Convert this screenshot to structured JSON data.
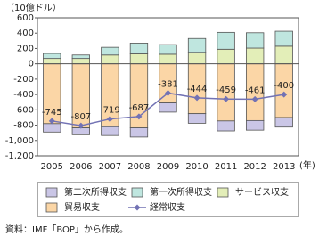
{
  "chart_data": {
    "type": "bar",
    "y_label": "（10億ドル）",
    "x_label": "(年)",
    "source": "資料：IMF「BOP」から作成。",
    "categories": [
      "2005",
      "2006",
      "2007",
      "2008",
      "2009",
      "2010",
      "2011",
      "2012",
      "2013"
    ],
    "series": [
      {
        "name": "第二次所得収支",
        "color": "#cac6e6",
        "values": [
          -110,
          -90,
          -115,
          -120,
          -120,
          -125,
          -130,
          -125,
          -125
        ]
      },
      {
        "name": "第一次所得収支",
        "color": "#bfe6df",
        "values": [
          65,
          45,
          100,
          140,
          125,
          180,
          220,
          200,
          195
        ]
      },
      {
        "name": "サービス収支",
        "color": "#e3eeb8",
        "values": [
          70,
          70,
          115,
          130,
          125,
          150,
          190,
          205,
          230
        ]
      },
      {
        "name": "貿易収支",
        "color": "#fbd6a6",
        "values": [
          -780,
          -835,
          -820,
          -835,
          -510,
          -650,
          -745,
          -740,
          -700
        ]
      },
      {
        "name": "経常収支",
        "color": "#7272b4",
        "type": "line",
        "values": [
          -745,
          -807,
          -719,
          -687,
          -381,
          -444,
          -459,
          -461,
          -400
        ]
      }
    ],
    "ylim": [
      -1200,
      600
    ],
    "yticks": [
      {
        "value": -1200,
        "label": "-1,200"
      },
      {
        "value": -1000,
        "label": "-1,000"
      },
      -800,
      -600,
      -400,
      -200,
      0,
      200,
      400,
      600
    ],
    "grid": false
  }
}
